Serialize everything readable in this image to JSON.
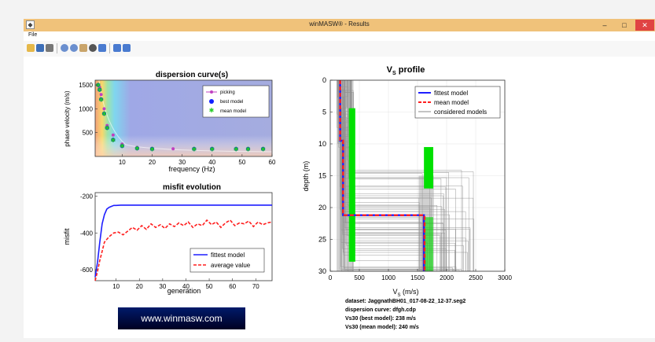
{
  "window": {
    "title": "winMASW® - Results",
    "minimize": "–",
    "maximize": "□",
    "close": "✕"
  },
  "menu": {
    "file": "File"
  },
  "toolbar": {
    "icons": [
      "open-icon",
      "save-icon",
      "print-icon",
      "zoom-in-icon",
      "zoom-out-icon",
      "pan-icon",
      "rotate-icon",
      "data-cursor-icon",
      "colorbar-icon",
      "legend-icon"
    ]
  },
  "colors": {
    "titlebar": "#f0c27a",
    "close": "#e04343",
    "fittest": "#1f1fff",
    "mean": "#ff1f1f",
    "considered": "#8a8a8a",
    "green": "#00e000"
  },
  "dispersion": {
    "title": "dispersion curve(s)",
    "ylabel": "phase velocity (m/s)",
    "xlabel": "frequency (Hz)",
    "xticks": [
      "10",
      "20",
      "30",
      "40",
      "50",
      "60"
    ],
    "yticks": [
      "500",
      "1000",
      "1500"
    ],
    "legend": [
      "picking",
      "best model",
      "mean model"
    ]
  },
  "misfit": {
    "title": "misfit evolution",
    "ylabel": "misfit",
    "xlabel": "generation",
    "xticks": [
      "10",
      "20",
      "30",
      "40",
      "50",
      "60",
      "70"
    ],
    "yticks": [
      "-200",
      "-400",
      "-600"
    ],
    "legend": [
      "fittest model",
      "average value"
    ]
  },
  "vs": {
    "title_main": "V",
    "title_sub": "S",
    "title_rest": " profile",
    "ylabel": "depth (m)",
    "xlabel_main": "V",
    "xlabel_sub": "S",
    "xlabel_rest": " (m/s)",
    "xticks": [
      "0",
      "500",
      "1000",
      "1500",
      "2000",
      "2500",
      "3000"
    ],
    "yticks": [
      "0",
      "5",
      "10",
      "15",
      "20",
      "25",
      "30"
    ],
    "legend": [
      "fittest model",
      "mean model",
      "considered models"
    ]
  },
  "info": {
    "dataset": "dataset: JaggnathBH01_017-08-22_12-37.seg2",
    "curve": "dispersion curve: dfgh.cdp",
    "vs30_best": "Vs30 (best model): 238 m/s",
    "vs30_mean": "Vs30 (mean model): 240 m/s"
  },
  "logo": "www.winmasw.com",
  "chart_data": [
    {
      "type": "scatter",
      "title": "dispersion curve(s)",
      "xlabel": "frequency (Hz)",
      "ylabel": "phase velocity (m/s)",
      "xlim": [
        1,
        60
      ],
      "ylim": [
        0,
        1600
      ],
      "legend_position": "top-right",
      "series": [
        {
          "name": "picking",
          "x": [
            2,
            2.5,
            3,
            4,
            5,
            7,
            10,
            15,
            20,
            27,
            34,
            40,
            48,
            52,
            57
          ],
          "y": [
            1500,
            1450,
            1300,
            1000,
            650,
            450,
            260,
            190,
            170,
            160,
            160,
            160,
            160,
            160,
            160
          ]
        },
        {
          "name": "best model",
          "x": [
            2,
            2.5,
            3,
            4,
            5,
            7,
            10,
            15,
            20,
            34,
            40,
            48,
            52,
            57
          ],
          "y": [
            1500,
            1400,
            1200,
            900,
            600,
            350,
            220,
            170,
            160,
            160,
            160,
            160,
            160,
            160
          ]
        },
        {
          "name": "mean model",
          "x": [
            2,
            2.5,
            3,
            4,
            5,
            7,
            10,
            15,
            20,
            34,
            40,
            48,
            52,
            57
          ],
          "y": [
            1500,
            1400,
            1200,
            900,
            600,
            350,
            220,
            170,
            160,
            160,
            160,
            160,
            160,
            160
          ]
        }
      ]
    },
    {
      "type": "line",
      "title": "misfit evolution",
      "xlabel": "generation",
      "ylabel": "misfit",
      "xlim": [
        1,
        77
      ],
      "ylim": [
        -660,
        -180
      ],
      "legend_position": "bottom-right",
      "series": [
        {
          "name": "fittest model",
          "x": [
            1,
            2,
            3,
            4,
            5,
            6,
            7,
            8,
            9,
            10,
            12,
            15,
            20,
            30,
            40,
            50,
            60,
            70,
            77
          ],
          "y": [
            -640,
            -560,
            -450,
            -350,
            -300,
            -270,
            -260,
            -255,
            -250,
            -250,
            -248,
            -248,
            -248,
            -248,
            -248,
            -248,
            -248,
            -248,
            -248
          ]
        },
        {
          "name": "average value",
          "x": [
            1,
            2,
            3,
            4,
            5,
            7,
            9,
            11,
            13,
            15,
            17,
            19,
            21,
            23,
            25,
            27,
            29,
            31,
            33,
            35,
            37,
            39,
            41,
            43,
            45,
            47,
            49,
            51,
            53,
            55,
            57,
            59,
            61,
            63,
            65,
            67,
            69,
            71,
            73,
            75,
            77
          ],
          "y": [
            -660,
            -610,
            -550,
            -500,
            -450,
            -420,
            -400,
            -395,
            -410,
            -390,
            -370,
            -385,
            -360,
            -380,
            -350,
            -370,
            -355,
            -375,
            -350,
            -365,
            -345,
            -360,
            -340,
            -370,
            -350,
            -360,
            -330,
            -355,
            -340,
            -370,
            -345,
            -330,
            -360,
            -345,
            -350,
            -335,
            -365,
            -340,
            -355,
            -345,
            -340
          ]
        }
      ]
    },
    {
      "type": "line",
      "title": "VS profile",
      "xlabel": "VS (m/s)",
      "ylabel": "depth (m)",
      "xlim": [
        0,
        3000
      ],
      "ylim": [
        30,
        0
      ],
      "legend_position": "top-right",
      "series": [
        {
          "name": "fittest model",
          "x": [
            170,
            170,
            220,
            220,
            1610,
            1610
          ],
          "y": [
            0,
            9.5,
            9.5,
            21.2,
            21.2,
            30
          ]
        },
        {
          "name": "mean model",
          "x": [
            170,
            170,
            220,
            220,
            1620,
            1620
          ],
          "y": [
            0,
            9.5,
            9.5,
            21.2,
            21.2,
            30
          ]
        }
      ]
    }
  ]
}
